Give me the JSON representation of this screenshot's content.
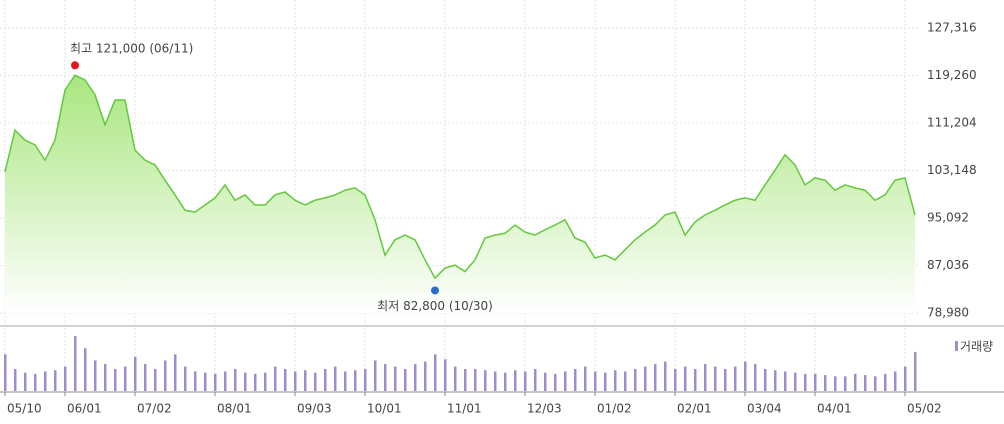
{
  "chart_data": {
    "type": "line",
    "categories": [
      "05/10",
      null,
      null,
      null,
      null,
      null,
      "06/01",
      null,
      null,
      null,
      null,
      null,
      null,
      "07/02",
      null,
      null,
      null,
      null,
      null,
      null,
      null,
      "08/01",
      null,
      null,
      null,
      null,
      null,
      null,
      null,
      "09/03",
      null,
      null,
      null,
      null,
      null,
      null,
      "10/01",
      null,
      null,
      null,
      null,
      null,
      null,
      null,
      "11/01",
      null,
      null,
      null,
      null,
      null,
      null,
      null,
      "12/03",
      null,
      null,
      null,
      null,
      null,
      null,
      "01/02",
      null,
      null,
      null,
      null,
      null,
      null,
      null,
      "02/01",
      null,
      null,
      null,
      null,
      null,
      null,
      "03/04",
      null,
      null,
      null,
      null,
      null,
      null,
      "04/01",
      null,
      null,
      null,
      null,
      null,
      null,
      null,
      null,
      "05/02",
      null
    ],
    "series": [
      {
        "color": "#63c93c",
        "values": [
          102900,
          110000,
          108300,
          107500,
          104900,
          108300,
          116800,
          119300,
          118500,
          116000,
          110900,
          115100,
          115100,
          106600,
          104900,
          104100,
          101500,
          99000,
          96400,
          96100,
          97300,
          98500,
          100700,
          98100,
          99000,
          97300,
          97300,
          99000,
          99500,
          98100,
          97300,
          98100,
          98500,
          99000,
          99800,
          100200,
          99000,
          94800,
          88800,
          91400,
          92200,
          91400,
          88000,
          84900,
          86600,
          87100,
          86000,
          88000,
          91700,
          92200,
          92500,
          93900,
          92700,
          92200,
          93100,
          93900,
          94800,
          91700,
          91000,
          88300,
          88800,
          88000,
          89700,
          91400,
          92700,
          93900,
          95600,
          96100,
          92200,
          94400,
          95600,
          96400,
          97300,
          98100,
          98500,
          98100,
          100700,
          103200,
          105800,
          104100,
          100700,
          101900,
          101500,
          99800,
          100700,
          100200,
          99800,
          98100,
          99000,
          101500,
          101900,
          95600
        ]
      },
      {
        "name": "거래량",
        "type": "bar",
        "color": "#a08ccb",
        "values": [
          30,
          18,
          15,
          14,
          16,
          17,
          20,
          45,
          35,
          25,
          22,
          18,
          20,
          28,
          22,
          18,
          25,
          30,
          20,
          16,
          15,
          14,
          16,
          18,
          15,
          14,
          15,
          20,
          18,
          16,
          17,
          15,
          18,
          20,
          16,
          17,
          18,
          25,
          22,
          20,
          18,
          22,
          24,
          30,
          26,
          20,
          18,
          18,
          17,
          16,
          15,
          17,
          16,
          18,
          15,
          14,
          16,
          18,
          20,
          16,
          15,
          17,
          16,
          18,
          20,
          22,
          24,
          18,
          20,
          18,
          22,
          20,
          18,
          20,
          24,
          22,
          18,
          17,
          16,
          15,
          14,
          14,
          13,
          12,
          12,
          14,
          13,
          12,
          14,
          16,
          20,
          32
        ]
      }
    ],
    "ylim": [
      78980,
      127316
    ],
    "yticks": [
      {
        "value": 78980,
        "label": "78,980"
      },
      {
        "value": 87036,
        "label": "87,036"
      },
      {
        "value": 95092,
        "label": "95,092"
      },
      {
        "value": 103148,
        "label": "103,148"
      },
      {
        "value": 111204,
        "label": "111,204"
      },
      {
        "value": 119260,
        "label": "119,260"
      },
      {
        "value": 127316,
        "label": "127,316"
      }
    ],
    "grid": true,
    "annotations": [
      {
        "label": "최고 121,000 (06/11)",
        "value": 121000,
        "color": "#e8141b"
      },
      {
        "label": "최저 82,800 (10/30)",
        "value": 82800,
        "color": "#2a6fc9"
      }
    ]
  }
}
